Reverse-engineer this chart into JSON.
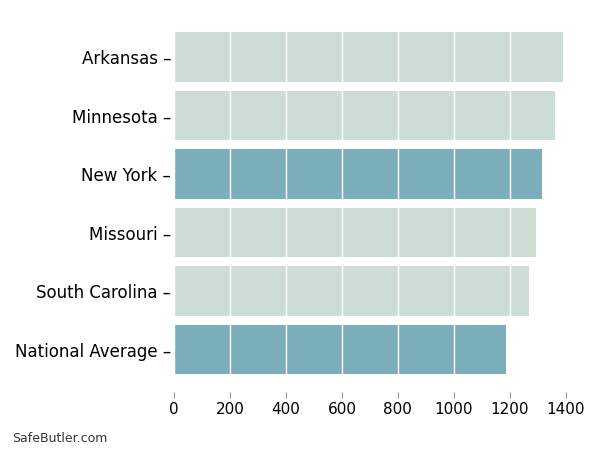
{
  "categories": [
    "Arkansas",
    "Minnesota",
    "New York",
    "Missouri",
    "South Carolina",
    "National Average"
  ],
  "values": [
    1390,
    1360,
    1315,
    1295,
    1270,
    1185
  ],
  "bar_colors": [
    "#ccddd4",
    "#ccddd4",
    "#7aaebb",
    "#ccddd4",
    "#ccddd4",
    "#7aaebb"
  ],
  "xlim": [
    0,
    1400
  ],
  "xticks": [
    0,
    200,
    400,
    600,
    800,
    1000,
    1200,
    1400
  ],
  "background_color": "#ffffff",
  "bar_height": 0.85,
  "footer_text": "SafeButler.com",
  "tick_fontsize": 11,
  "label_fontsize": 12
}
